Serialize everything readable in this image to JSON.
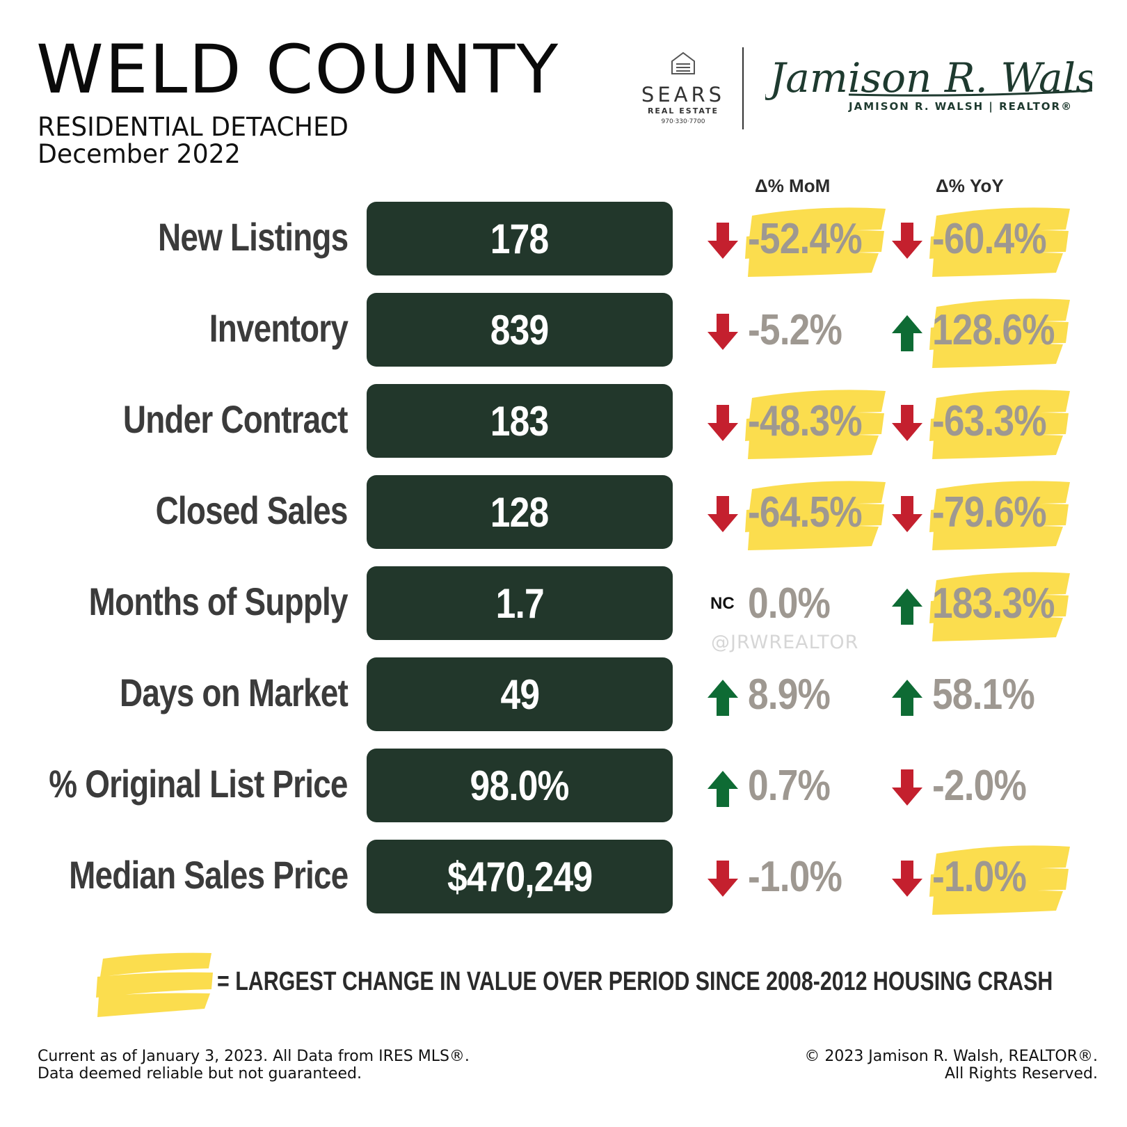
{
  "header": {
    "title": "WELD COUNTY",
    "subtitle_line1": "RESIDENTIAL DETACHED",
    "subtitle_line2": "December 2022"
  },
  "logos": {
    "sears_name": "SEARS",
    "sears_sub": "REAL ESTATE",
    "sears_phone": "970·330·7700",
    "walsh_signature": "Jamison R. Walsh",
    "walsh_line": "JAMISON R. WALSH | REALTOR®"
  },
  "columns": {
    "mom": "Δ% MoM",
    "yoy": "Δ% YoY"
  },
  "colors": {
    "box": "#22372b",
    "up": "#0e6b34",
    "down": "#c4202e",
    "highlight": "#fbdd4e",
    "pct": "#9e9891"
  },
  "rows": [
    {
      "label": "New Listings",
      "value": "178",
      "mom": {
        "dir": "down",
        "pct": "-52.4%",
        "highlight": true
      },
      "yoy": {
        "dir": "down",
        "pct": "-60.4%",
        "highlight": true
      }
    },
    {
      "label": "Inventory",
      "value": "839",
      "mom": {
        "dir": "down",
        "pct": "-5.2%",
        "highlight": false
      },
      "yoy": {
        "dir": "up",
        "pct": "128.6%",
        "highlight": true
      }
    },
    {
      "label": "Under Contract",
      "value": "183",
      "mom": {
        "dir": "down",
        "pct": "-48.3%",
        "highlight": true
      },
      "yoy": {
        "dir": "down",
        "pct": "-63.3%",
        "highlight": true
      }
    },
    {
      "label": "Closed Sales",
      "value": "128",
      "mom": {
        "dir": "down",
        "pct": "-64.5%",
        "highlight": true
      },
      "yoy": {
        "dir": "down",
        "pct": "-79.6%",
        "highlight": true
      }
    },
    {
      "label": "Months of Supply",
      "value": "1.7",
      "mom": {
        "dir": "nc",
        "nc_label": "NC",
        "pct": "0.0%",
        "highlight": false
      },
      "yoy": {
        "dir": "up",
        "pct": "183.3%",
        "highlight": true
      }
    },
    {
      "label": "Days on Market",
      "value": "49",
      "mom": {
        "dir": "up",
        "pct": "8.9%",
        "highlight": false
      },
      "yoy": {
        "dir": "up",
        "pct": "58.1%",
        "highlight": false
      }
    },
    {
      "label": "% Original List Price",
      "value": "98.0%",
      "mom": {
        "dir": "up",
        "pct": "0.7%",
        "highlight": false
      },
      "yoy": {
        "dir": "down",
        "pct": "-2.0%",
        "highlight": false
      }
    },
    {
      "label": "Median Sales Price",
      "value": "$470,249",
      "mom": {
        "dir": "down",
        "pct": "-1.0%",
        "highlight": false
      },
      "yoy": {
        "dir": "down",
        "pct": "-1.0%",
        "highlight": true
      }
    }
  ],
  "watermark": "@JRWREALTOR",
  "legend": {
    "text": "= LARGEST CHANGE IN VALUE OVER PERIOD SINCE 2008-2012 HOUSING CRASH"
  },
  "footer": {
    "left_line1": "Current as of January 3, 2023. All Data from IRES MLS®.",
    "left_line2": "Data deemed reliable but not guaranteed.",
    "right_line1": "© 2023 Jamison R. Walsh, REALTOR®.",
    "right_line2": "All Rights Reserved."
  }
}
